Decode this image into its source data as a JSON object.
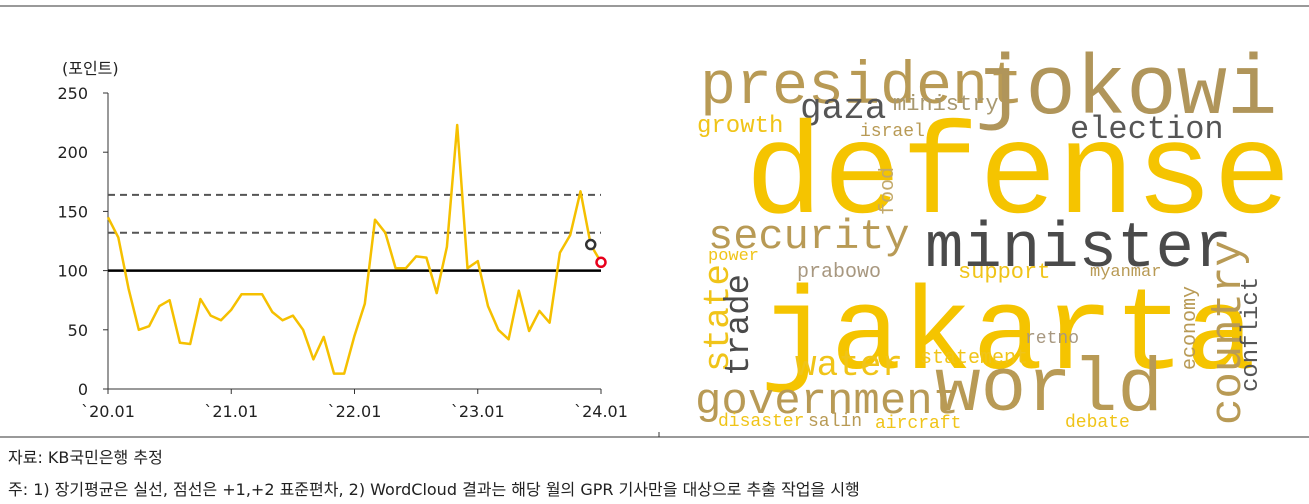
{
  "chart_data": {
    "type": "line",
    "y_label": "(포인트)",
    "categories": [
      "`20.01",
      null,
      null,
      null,
      null,
      null,
      null,
      null,
      null,
      null,
      null,
      null,
      "`21.01",
      null,
      null,
      null,
      null,
      null,
      null,
      null,
      null,
      null,
      null,
      null,
      "`22.01",
      null,
      null,
      null,
      null,
      null,
      null,
      null,
      null,
      null,
      null,
      null,
      "`23.01",
      null,
      null,
      null,
      null,
      null,
      null,
      null,
      null,
      null,
      null,
      null,
      "`24.01"
    ],
    "series": [
      {
        "color": "#f5c000",
        "values": [
          145,
          128,
          85,
          50,
          53,
          70,
          75,
          39,
          38,
          76,
          62,
          58,
          67,
          80,
          80,
          80,
          65,
          58,
          62,
          50,
          25,
          44,
          13,
          13,
          45,
          72,
          143,
          132,
          102,
          102,
          112,
          111,
          81,
          120,
          223,
          102,
          108,
          70,
          50,
          42,
          83,
          49,
          66,
          56,
          115,
          130,
          167,
          122,
          107
        ]
      }
    ],
    "last_point_colors": [
      "#333333",
      "#e8001c"
    ],
    "hlines": [
      {
        "value": 100,
        "style": "solid"
      },
      {
        "value": 132,
        "style": "dashed"
      },
      {
        "value": 164,
        "style": "dashed"
      }
    ],
    "ylim": [
      0,
      250
    ],
    "yticks": [
      0,
      50,
      100,
      150,
      200,
      250
    ]
  },
  "wordcloud": {
    "words": [
      {
        "text": "president",
        "color": "#b89a55"
      },
      {
        "text": "jokowi",
        "color": "#b0955a"
      },
      {
        "text": "gaza",
        "color": "#555555"
      },
      {
        "text": "ministry",
        "color": "#a89870"
      },
      {
        "text": "growth",
        "color": "#f0c419"
      },
      {
        "text": "israel",
        "color": "#b89a55"
      },
      {
        "text": "election",
        "color": "#555555"
      },
      {
        "text": "defense",
        "color": "#f5c400"
      },
      {
        "text": "food",
        "color": "#c2a868"
      },
      {
        "text": "security",
        "color": "#b89a55"
      },
      {
        "text": "minister",
        "color": "#4a4a4a"
      },
      {
        "text": "power",
        "color": "#f0c419"
      },
      {
        "text": "prabowo",
        "color": "#a89880"
      },
      {
        "text": "support",
        "color": "#f0c419"
      },
      {
        "text": "myanmar",
        "color": "#b89a55"
      },
      {
        "text": "state",
        "color": "#f0c419"
      },
      {
        "text": "trade",
        "color": "#4a4a4a"
      },
      {
        "text": "jakarta",
        "color": "#f5c400"
      },
      {
        "text": "economy",
        "color": "#b89a55"
      },
      {
        "text": "country",
        "color": "#b89a55"
      },
      {
        "text": "conflict",
        "color": "#555555"
      },
      {
        "text": "retno",
        "color": "#a89880"
      },
      {
        "text": "water",
        "color": "#f0c419"
      },
      {
        "text": "statement",
        "color": "#f0c419"
      },
      {
        "text": "world",
        "color": "#b89a55"
      },
      {
        "text": "government",
        "color": "#b89a55"
      },
      {
        "text": "disaster",
        "color": "#f0c419"
      },
      {
        "text": "salin",
        "color": "#b89a55"
      },
      {
        "text": "aircraft",
        "color": "#f0c419"
      },
      {
        "text": "debate",
        "color": "#f0c419"
      }
    ]
  },
  "footer": {
    "source": "자료: KB국민은행 추정",
    "note": "주: 1) 장기평균은 실선, 점선은 +1,+2 표준편차, 2) WordCloud 결과는 해당 월의 GPR 기사만을 대상으로 추출 작업을 시행"
  }
}
